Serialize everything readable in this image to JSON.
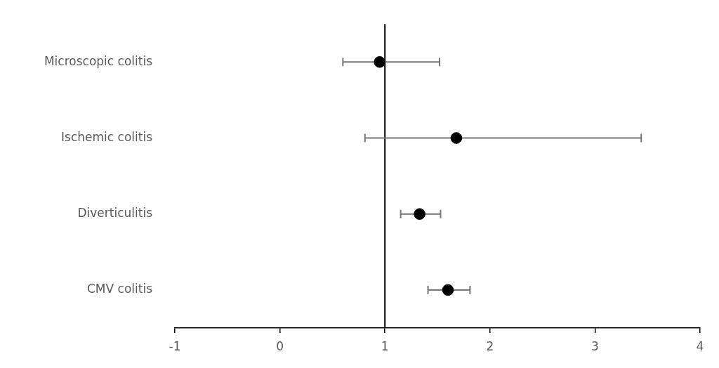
{
  "chart_data": {
    "type": "scatter",
    "orientation": "horizontal",
    "marker": "circle",
    "color": "#000000",
    "categories": [
      "Microscopic colitis",
      "Ischemic colitis",
      "Diverticulitis",
      "CMV colitis"
    ],
    "values": [
      0.95,
      1.68,
      1.33,
      1.6
    ],
    "errors": [
      [
        0.6,
        1.52
      ],
      [
        0.81,
        3.44
      ],
      [
        1.15,
        1.53
      ],
      [
        1.41,
        1.81
      ]
    ],
    "xlim": [
      -1,
      4
    ],
    "xticks": [
      -1,
      0,
      1,
      2,
      3,
      4
    ],
    "ref_lines": [
      {
        "axis": "x",
        "value": 1,
        "color": "#000000"
      }
    ]
  }
}
